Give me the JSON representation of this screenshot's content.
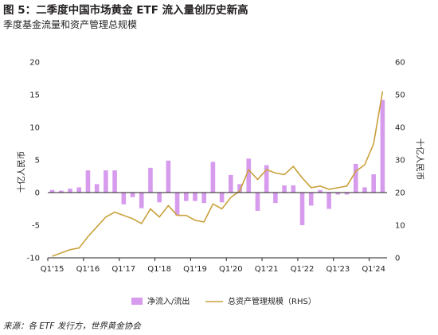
{
  "header": {
    "title": "图 5：二季度中国市场黄金 ETF 流入量创历史新高",
    "subtitle": "季度基金流量和资产管理总规模"
  },
  "source": "来源：各 ETF 发行方，世界黄金协会",
  "colors": {
    "bar": "#d79bee",
    "line": "#c9a13b",
    "axis": "#231f20"
  },
  "chart_data": {
    "type": "bar",
    "title": "",
    "xlabel": "",
    "ylabel": "十亿人民币",
    "ylabel_right": "十亿人民币",
    "ylim": [
      -10,
      20
    ],
    "ylim_right": [
      0,
      60
    ],
    "y_ticks": [
      "-10",
      "-5",
      "0",
      "5",
      "10",
      "15",
      "20"
    ],
    "y_ticks_right": [
      "0",
      "10",
      "20",
      "30",
      "40",
      "50",
      "60"
    ],
    "x_tick_labels": [
      {
        "label": "Q1'15",
        "index": 0
      },
      {
        "label": "Q1'16",
        "index": 4
      },
      {
        "label": "Q1'17",
        "index": 8
      },
      {
        "label": "Q1'18",
        "index": 12
      },
      {
        "label": "Q1'19",
        "index": 16
      },
      {
        "label": "Q1'20",
        "index": 20
      },
      {
        "label": "Q1'21",
        "index": 24
      },
      {
        "label": "Q1'22",
        "index": 28
      },
      {
        "label": "Q1'23",
        "index": 32
      },
      {
        "label": "Q1'24",
        "index": 36
      }
    ],
    "categories": [
      "Q1'15",
      "Q2'15",
      "Q3'15",
      "Q4'15",
      "Q1'16",
      "Q2'16",
      "Q3'16",
      "Q4'16",
      "Q1'17",
      "Q2'17",
      "Q3'17",
      "Q4'17",
      "Q1'18",
      "Q2'18",
      "Q3'18",
      "Q4'18",
      "Q1'19",
      "Q2'19",
      "Q3'19",
      "Q4'19",
      "Q1'20",
      "Q2'20",
      "Q3'20",
      "Q4'20",
      "Q1'21",
      "Q2'21",
      "Q3'21",
      "Q4'21",
      "Q1'22",
      "Q2'22",
      "Q3'22",
      "Q4'22",
      "Q1'23",
      "Q2'23",
      "Q3'23",
      "Q4'23",
      "Q1'24",
      "Q2'24"
    ],
    "series": [
      {
        "name": "净流入/流出",
        "kind": "bar",
        "axis": "left",
        "values": [
          0.4,
          0.3,
          0.6,
          0.8,
          3.4,
          1.3,
          3.4,
          3.4,
          -1.8,
          -0.7,
          -2.4,
          3.8,
          -1.5,
          4.9,
          -3.5,
          -1.3,
          -1.3,
          -1.6,
          4.7,
          -1.5,
          2.7,
          1.3,
          5.2,
          -2.8,
          4.2,
          -1.6,
          1.1,
          1.1,
          -5.0,
          -2.0,
          0.4,
          -2.5,
          -0.3,
          -0.3,
          4.4,
          0.8,
          2.8,
          14.2
        ]
      },
      {
        "name": "总资产管理规模（RHS）",
        "kind": "line",
        "axis": "right",
        "values": [
          0.5,
          1.5,
          2.5,
          3.0,
          6.5,
          9.5,
          12.5,
          14.0,
          13.0,
          12.0,
          10.5,
          15.0,
          12.5,
          16.0,
          13.0,
          13.0,
          11.5,
          11.0,
          16.5,
          15.0,
          18.5,
          20.5,
          27.0,
          24.0,
          27.0,
          26.0,
          25.5,
          28.0,
          24.5,
          21.5,
          22.0,
          21.0,
          21.5,
          22.0,
          26.5,
          28.5,
          35.0,
          51.0
        ]
      }
    ],
    "grid": false,
    "legend_position": "bottom"
  }
}
